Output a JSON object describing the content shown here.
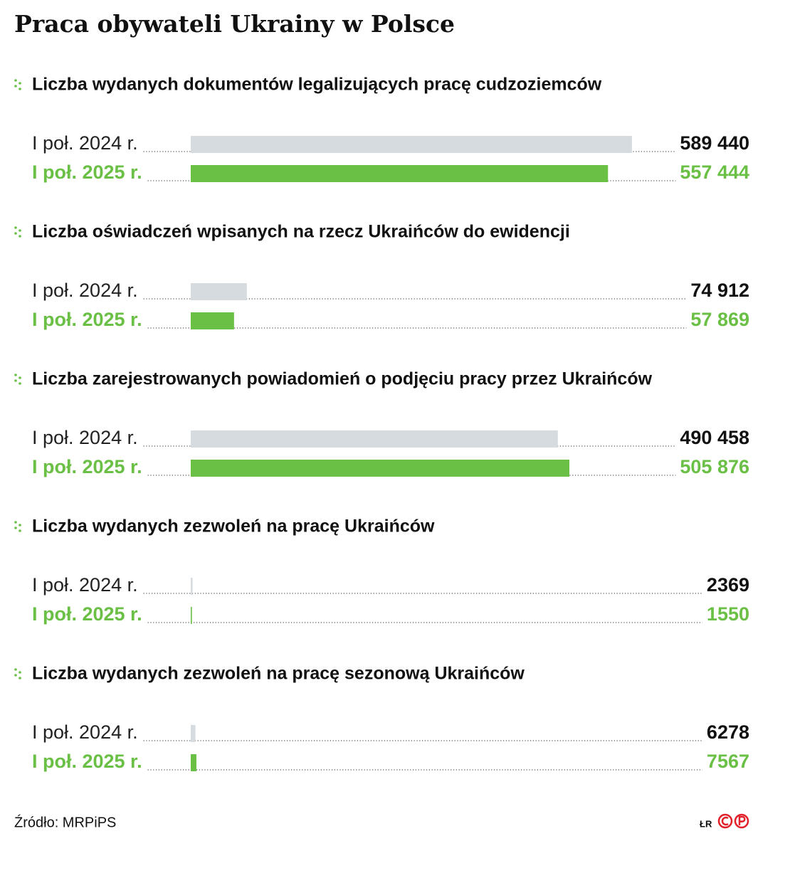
{
  "header": {
    "title": "Praca obywateli Ukrainy w Polsce"
  },
  "chart_data": [
    {
      "type": "bar",
      "title": "Liczba wydanych dokumentów legalizujących pracę cudzoziemców",
      "categories": [
        "I poł. 2024 r.",
        "I poł. 2025 r."
      ],
      "values": [
        589440,
        557444
      ],
      "value_labels": [
        "589 440",
        "557 444"
      ],
      "colors": [
        "#d5dbdf",
        "#6abf45"
      ],
      "xlim": [
        0,
        600000
      ]
    },
    {
      "type": "bar",
      "title": "Liczba oświadczeń wpisanych na rzecz Ukraińców do ewidencji",
      "categories": [
        "I poł. 2024 r.",
        "I poł. 2025 r."
      ],
      "values": [
        74912,
        57869
      ],
      "value_labels": [
        "74 912",
        "57 869"
      ],
      "colors": [
        "#d5dbdf",
        "#6abf45"
      ],
      "xlim": [
        0,
        600000
      ]
    },
    {
      "type": "bar",
      "title": "Liczba zarejestrowanych powiadomień o podjęciu pracy przez Ukraińców",
      "categories": [
        "I poł. 2024 r.",
        "I poł. 2025 r."
      ],
      "values": [
        490458,
        505876
      ],
      "value_labels": [
        "490 458",
        "505 876"
      ],
      "colors": [
        "#d5dbdf",
        "#6abf45"
      ],
      "xlim": [
        0,
        600000
      ]
    },
    {
      "type": "bar",
      "title": "Liczba wydanych zezwoleń na pracę Ukraińców",
      "categories": [
        "I poł. 2024 r.",
        "I poł. 2025 r."
      ],
      "values": [
        2369,
        1550
      ],
      "value_labels": [
        "2369",
        "1550"
      ],
      "colors": [
        "#d5dbdf",
        "#6abf45"
      ],
      "xlim": [
        0,
        600000
      ]
    },
    {
      "type": "bar",
      "title": "Liczba wydanych zezwoleń na pracę sezonową Ukraińców",
      "categories": [
        "I poł. 2024 r.",
        "I poł. 2025 r."
      ],
      "values": [
        6278,
        7567
      ],
      "value_labels": [
        "6278",
        "7567"
      ],
      "colors": [
        "#d5dbdf",
        "#6abf45"
      ],
      "xlim": [
        0,
        600000
      ]
    }
  ],
  "footer": {
    "source": "Źródło: MRPiPS",
    "credit": "ŁR"
  }
}
